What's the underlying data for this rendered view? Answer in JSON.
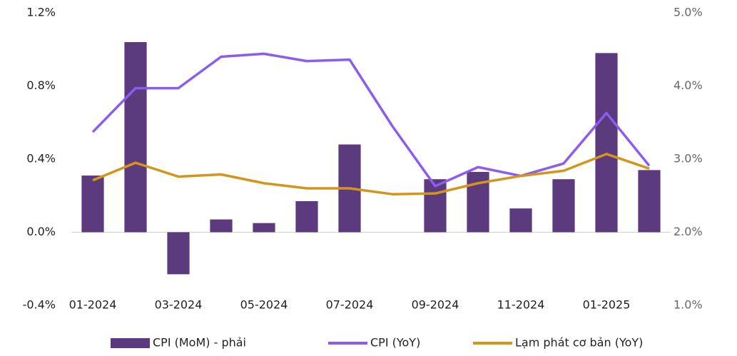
{
  "chart_data": {
    "type": "bar_line",
    "categories": [
      "01-2024",
      null,
      "03-2024",
      null,
      "05-2024",
      null,
      "07-2024",
      null,
      "09-2024",
      null,
      "11-2024",
      null,
      "01-2025",
      null
    ],
    "series": [
      {
        "name": "CPI (MoM) - phải",
        "type": "bar",
        "color": "#5b3a7e",
        "values": [
          0.31,
          1.04,
          -0.23,
          0.07,
          0.05,
          0.17,
          0.48,
          0,
          0.29,
          0.33,
          0.13,
          0.29,
          0.98,
          0.34
        ]
      },
      {
        "name": "CPI (YoY)",
        "type": "line",
        "axis": "y2",
        "color": "#8c5cf0",
        "values": [
          3.37,
          3.97,
          3.97,
          4.4,
          4.44,
          4.34,
          4.36,
          3.45,
          2.63,
          2.89,
          2.77,
          2.94,
          3.63,
          2.91
        ]
      },
      {
        "name": "Lạm phát cơ bản (YoY)",
        "type": "line",
        "axis": "y2",
        "color": "#d4961a",
        "values": [
          2.71,
          2.95,
          2.76,
          2.79,
          2.67,
          2.6,
          2.6,
          2.52,
          2.53,
          2.67,
          2.77,
          2.84,
          3.07,
          2.87
        ]
      }
    ],
    "ylim": [
      -0.4,
      1.2
    ],
    "yticks": [
      {
        "value": -0.4,
        "label": "-0.4%"
      },
      {
        "value": 0,
        "label": "0.0%"
      },
      {
        "value": 0.4,
        "label": "0.4%"
      },
      {
        "value": 0.8,
        "label": "0.8%"
      },
      {
        "value": 1.2,
        "label": "1.2%"
      }
    ],
    "y2lim": [
      1,
      5
    ],
    "y2ticks": [
      {
        "value": 1,
        "label": "1.0%"
      },
      {
        "value": 2,
        "label": "2.0%"
      },
      {
        "value": 3,
        "label": "3.0%"
      },
      {
        "value": 4,
        "label": "4.0%"
      },
      {
        "value": 5,
        "label": "5.0%"
      }
    ],
    "legend": "bottom"
  }
}
